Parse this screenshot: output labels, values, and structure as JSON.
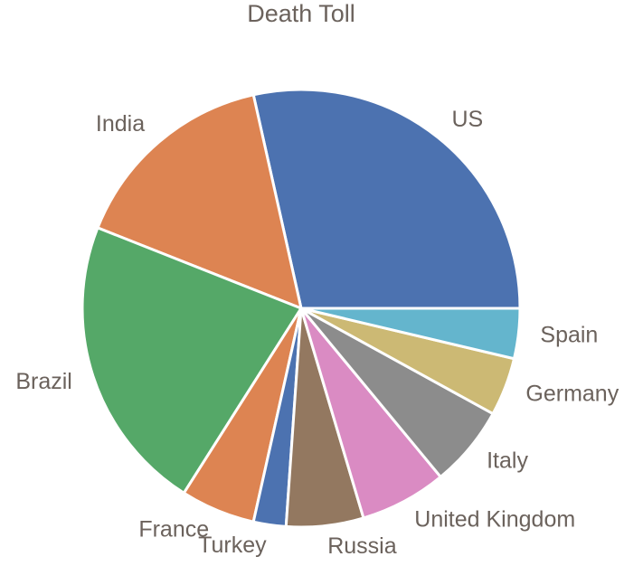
{
  "chart_data": {
    "type": "pie",
    "title": "Death Toll",
    "start_angle_deg": 0,
    "direction": "counterclockwise",
    "slices": [
      {
        "label": "US",
        "value": 28.5,
        "color": "#4c72b0"
      },
      {
        "label": "India",
        "value": 15.5,
        "color": "#dd8452"
      },
      {
        "label": "Brazil",
        "value": 22.0,
        "color": "#55a868"
      },
      {
        "label": "France",
        "value": 5.5,
        "color": "#dd8452"
      },
      {
        "label": "Turkey",
        "value": 2.4,
        "color": "#4c72b0"
      },
      {
        "label": "Russia",
        "value": 5.7,
        "color": "#937860"
      },
      {
        "label": "United Kingdom",
        "value": 6.4,
        "color": "#da8bc3"
      },
      {
        "label": "Italy",
        "value": 6.0,
        "color": "#8c8c8c"
      },
      {
        "label": "Germany",
        "value": 4.3,
        "color": "#ccb974"
      },
      {
        "label": "Spain",
        "value": 3.7,
        "color": "#64b5cd"
      }
    ]
  }
}
